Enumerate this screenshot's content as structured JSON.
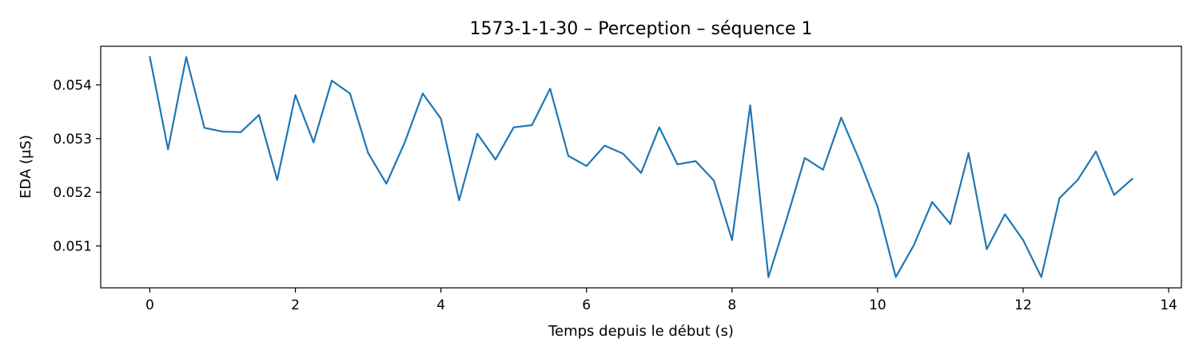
{
  "chart_data": {
    "type": "line",
    "title": "1573-1-1-30 – Perception – séquence 1",
    "xlabel": "Temps depuis le début (s)",
    "ylabel": "EDA (µS)",
    "xlim": [
      -0.675,
      14.175
    ],
    "ylim": [
      0.05022,
      0.05472
    ],
    "xticks": [
      0,
      2,
      4,
      6,
      8,
      10,
      12,
      14
    ],
    "yticks": [
      0.051,
      0.052,
      0.053,
      0.054
    ],
    "xtick_labels": [
      "0",
      "2",
      "4",
      "6",
      "8",
      "10",
      "12",
      "14"
    ],
    "ytick_labels": [
      "0.051",
      "0.052",
      "0.053",
      "0.054"
    ],
    "grid": false,
    "series": [
      {
        "color": "#1f77b4",
        "x": [
          0,
          0.25,
          0.5,
          0.75,
          1,
          1.25,
          1.5,
          1.75,
          2,
          2.25,
          2.5,
          2.75,
          3,
          3.25,
          3.5,
          3.75,
          4,
          4.25,
          4.5,
          4.75,
          5,
          5.25,
          5.5,
          5.75,
          6,
          6.25,
          6.5,
          6.75,
          7,
          7.25,
          7.5,
          7.75,
          8,
          8.25,
          8.5,
          8.75,
          9,
          9.25,
          9.5,
          9.75,
          10,
          10.25,
          10.5,
          10.75,
          11,
          11.25,
          11.5,
          11.75,
          12,
          12.25,
          12.5,
          12.75,
          13,
          13.25,
          13.5
        ],
        "y": [
          0.05452,
          0.0528,
          0.05452,
          0.0532,
          0.05313,
          0.05312,
          0.05344,
          0.05223,
          0.05381,
          0.05293,
          0.05408,
          0.05384,
          0.05273,
          0.05216,
          0.05292,
          0.05384,
          0.05337,
          0.05185,
          0.05309,
          0.05261,
          0.05321,
          0.05325,
          0.05393,
          0.05268,
          0.05249,
          0.05287,
          0.05272,
          0.05236,
          0.05321,
          0.05252,
          0.05258,
          0.05222,
          0.05111,
          0.05362,
          0.05042,
          0.0515,
          0.05264,
          0.05242,
          0.05339,
          0.0526,
          0.05173,
          0.05042,
          0.05102,
          0.05182,
          0.05141,
          0.05273,
          0.05094,
          0.05159,
          0.05111,
          0.05042,
          0.05189,
          0.05223,
          0.05276,
          0.05195,
          0.05225
        ]
      }
    ]
  }
}
